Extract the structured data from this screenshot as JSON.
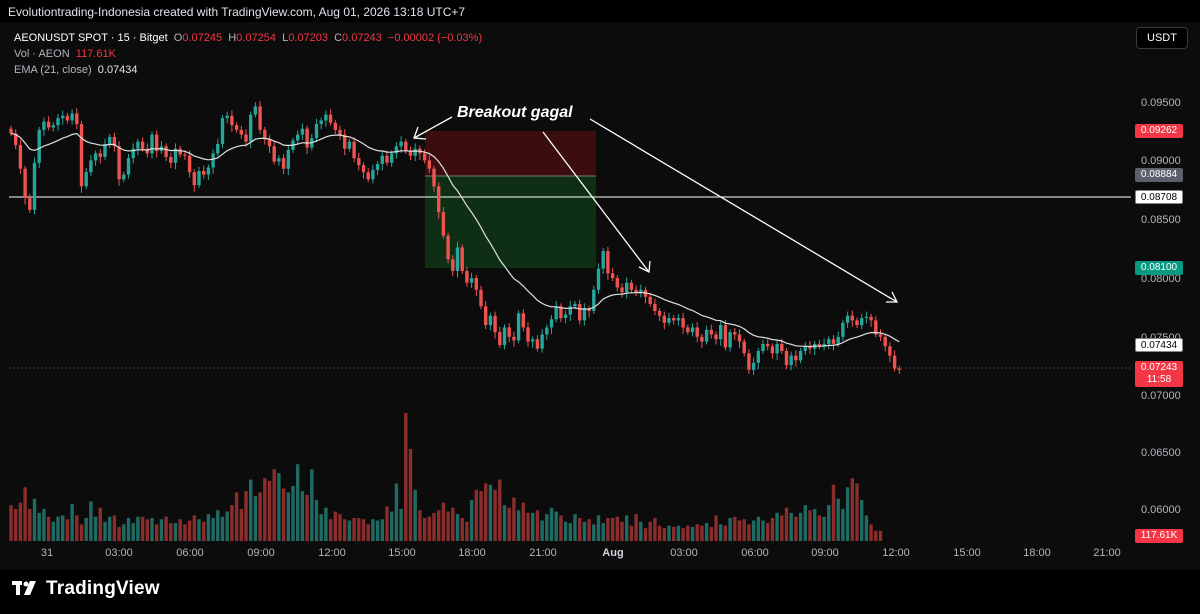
{
  "header": {
    "caption": "Evolutiontrading-Indonesia created with TradingView.com, Aug 01, 2026 13:18 UTC+7"
  },
  "legend": {
    "symbol": "AEONUSDT SPOT · 15 · Bitget",
    "o_label": "O",
    "o_value": "0.07245",
    "h_label": "H",
    "h_value": "0.07254",
    "l_label": "L",
    "l_value": "0.07203",
    "c_label": "C",
    "c_value": "0.07243",
    "change": "−0.00002 (−0.03%)",
    "vol_label": "Vol · AEON",
    "vol_value": "117.61K",
    "ema_label": "EMA (21, close)",
    "ema_value": "0.07434"
  },
  "currency_button": "USDT",
  "annotation": "Breakout gagal",
  "price_axis": {
    "ticks": [
      "0.09500",
      "0.09000",
      "0.08500",
      "0.08000",
      "0.07500",
      "0.07000",
      "0.06500",
      "0.06000"
    ],
    "tags": {
      "stop": "0.09262",
      "entry": "0.08884",
      "hline": "0.08708",
      "target": "0.08100",
      "ema": "0.07434",
      "last": "0.07243",
      "countdown": "11:58",
      "volume": "117.61K"
    }
  },
  "time_axis": {
    "ticks": [
      "31",
      "03:00",
      "06:00",
      "09:00",
      "12:00",
      "15:00",
      "18:00",
      "21:00",
      "Aug",
      "03:00",
      "06:00",
      "09:00",
      "12:00",
      "15:00",
      "18:00",
      "21:00"
    ]
  },
  "colors": {
    "up": "#26a69a",
    "down": "#ef5350",
    "vol_up": "#1f6b63",
    "vol_down": "#8b2d2b",
    "ema": "#e0e0e0",
    "stop_zone": "#3c0d0e",
    "target_zone": "#0e2f13",
    "tag_red": "#f23645",
    "tag_green": "#089981"
  },
  "brand": "TradingView",
  "chart_data": {
    "type": "candlestick",
    "symbol": "AEONUSDT",
    "interval": "15",
    "ylim": [
      0.0555,
      0.0988
    ],
    "key_levels": {
      "horizontal_line": 0.08708,
      "position_stop": 0.09262,
      "position_entry": 0.08884,
      "position_target": 0.081,
      "last_price": 0.07243,
      "ema_21": 0.07434
    },
    "close": [
      0.0925,
      0.0915,
      0.0895,
      0.087,
      0.086,
      0.09,
      0.0928,
      0.0935,
      0.093,
      0.0932,
      0.0938,
      0.094,
      0.0936,
      0.0942,
      0.0933,
      0.088,
      0.0892,
      0.0902,
      0.0908,
      0.0905,
      0.0916,
      0.0922,
      0.0914,
      0.0886,
      0.089,
      0.0904,
      0.0912,
      0.0918,
      0.0912,
      0.0908,
      0.0924,
      0.091,
      0.0914,
      0.0905,
      0.09,
      0.0912,
      0.0907,
      0.0906,
      0.0892,
      0.0881,
      0.0893,
      0.089,
      0.0896,
      0.0908,
      0.0916,
      0.0938,
      0.094,
      0.0932,
      0.0928,
      0.0924,
      0.0918,
      0.0941,
      0.0948,
      0.0928,
      0.092,
      0.0914,
      0.0901,
      0.0904,
      0.0895,
      0.0911,
      0.0919,
      0.0924,
      0.0929,
      0.0913,
      0.0921,
      0.0933,
      0.0936,
      0.0941,
      0.0934,
      0.0928,
      0.0924,
      0.0912,
      0.0918,
      0.0904,
      0.0898,
      0.0892,
      0.0886,
      0.0894,
      0.0899,
      0.0906,
      0.09,
      0.0908,
      0.0914,
      0.0918,
      0.091,
      0.0906,
      0.0912,
      0.0908,
      0.0902,
      0.0895,
      0.088,
      0.0858,
      0.0838,
      0.0818,
      0.0808,
      0.0828,
      0.0808,
      0.0798,
      0.0802,
      0.0792,
      0.0778,
      0.0762,
      0.077,
      0.0756,
      0.0745,
      0.076,
      0.0752,
      0.0749,
      0.0772,
      0.076,
      0.0748,
      0.075,
      0.0742,
      0.0754,
      0.076,
      0.0767,
      0.0778,
      0.0768,
      0.0771,
      0.0778,
      0.078,
      0.0766,
      0.0776,
      0.0774,
      0.0792,
      0.081,
      0.0825,
      0.0806,
      0.0802,
      0.0794,
      0.079,
      0.0798,
      0.0792,
      0.079,
      0.0792,
      0.0786,
      0.078,
      0.0774,
      0.077,
      0.0764,
      0.0768,
      0.0766,
      0.0768,
      0.076,
      0.0756,
      0.076,
      0.0752,
      0.0748,
      0.0758,
      0.0754,
      0.075,
      0.0762,
      0.0743,
      0.0756,
      0.0754,
      0.0748,
      0.0738,
      0.0724,
      0.073,
      0.074,
      0.0746,
      0.0744,
      0.0738,
      0.0746,
      0.074,
      0.0728,
      0.0736,
      0.0732,
      0.074,
      0.0744,
      0.0742,
      0.0746,
      0.0744,
      0.0746,
      0.075,
      0.0746,
      0.0752,
      0.0764,
      0.077,
      0.0766,
      0.0762,
      0.0768,
      0.0769,
      0.0766,
      0.0754,
      0.0752,
      0.0744,
      0.0736,
      0.0725,
      0.0724
    ],
    "volume_relative": [
      0.28,
      0.25,
      0.3,
      0.42,
      0.25,
      0.33,
      0.22,
      0.25,
      0.19,
      0.15,
      0.19,
      0.2,
      0.17,
      0.29,
      0.2,
      0.13,
      0.18,
      0.31,
      0.19,
      0.26,
      0.15,
      0.19,
      0.2,
      0.11,
      0.13,
      0.18,
      0.14,
      0.19,
      0.19,
      0.17,
      0.18,
      0.13,
      0.17,
      0.19,
      0.14,
      0.14,
      0.17,
      0.13,
      0.16,
      0.2,
      0.17,
      0.15,
      0.21,
      0.18,
      0.24,
      0.19,
      0.23,
      0.28,
      0.38,
      0.25,
      0.39,
      0.48,
      0.35,
      0.38,
      0.49,
      0.47,
      0.56,
      0.53,
      0.41,
      0.38,
      0.43,
      0.6,
      0.39,
      0.36,
      0.56,
      0.32,
      0.21,
      0.26,
      0.17,
      0.23,
      0.21,
      0.17,
      0.16,
      0.18,
      0.18,
      0.17,
      0.13,
      0.17,
      0.16,
      0.17,
      0.27,
      0.23,
      0.45,
      0.25,
      1.0,
      0.72,
      0.4,
      0.24,
      0.18,
      0.19,
      0.22,
      0.24,
      0.3,
      0.23,
      0.26,
      0.21,
      0.18,
      0.15,
      0.32,
      0.4,
      0.39,
      0.45,
      0.44,
      0.4,
      0.48,
      0.28,
      0.26,
      0.34,
      0.24,
      0.3,
      0.22,
      0.22,
      0.24,
      0.16,
      0.21,
      0.26,
      0.23,
      0.2,
      0.15,
      0.14,
      0.21,
      0.18,
      0.15,
      0.17,
      0.13,
      0.2,
      0.14,
      0.18,
      0.18,
      0.19,
      0.15,
      0.2,
      0.12,
      0.21,
      0.15,
      0.1,
      0.15,
      0.18,
      0.12,
      0.1,
      0.12,
      0.11,
      0.12,
      0.1,
      0.12,
      0.11,
      0.13,
      0.12,
      0.14,
      0.11,
      0.2,
      0.13,
      0.12,
      0.18,
      0.19,
      0.16,
      0.17,
      0.13,
      0.16,
      0.19,
      0.16,
      0.14,
      0.18,
      0.22,
      0.2,
      0.26,
      0.22,
      0.19,
      0.22,
      0.28,
      0.24,
      0.25,
      0.2,
      0.19,
      0.28,
      0.44,
      0.33,
      0.25,
      0.42,
      0.49,
      0.45,
      0.32,
      0.2,
      0.13,
      0.08,
      0.08
    ]
  }
}
